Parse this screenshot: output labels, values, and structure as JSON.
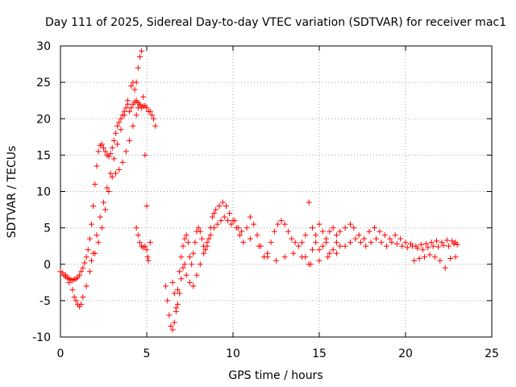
{
  "chart_data": {
    "type": "scatter",
    "title": "Day 111 of 2025, Sidereal Day-to-day VTEC variation (SDTVAR) for receiver mac1",
    "xlabel": "GPS time / hours",
    "ylabel": "SDTVAR / TECUs",
    "xlim": [
      0,
      25
    ],
    "ylim": [
      -10,
      30
    ],
    "xticks": [
      "0",
      "5",
      "10",
      "15",
      "20",
      "25"
    ],
    "yticks": [
      "-10",
      "-5",
      "0",
      "5",
      "10",
      "15",
      "20",
      "25",
      "30"
    ],
    "grid": true,
    "marker": "plus",
    "color": "#ff0000",
    "series": [
      {
        "name": "SDTVAR",
        "x": [
          0.0,
          0.1,
          0.2,
          0.3,
          0.4,
          0.5,
          0.6,
          0.7,
          0.8,
          0.9,
          1.0,
          1.1,
          1.2,
          1.3,
          1.4,
          1.5,
          1.6,
          1.7,
          1.8,
          1.9,
          2.0,
          2.1,
          2.2,
          2.3,
          2.4,
          2.5,
          2.6,
          2.7,
          2.8,
          2.9,
          3.0,
          3.1,
          3.2,
          3.3,
          3.4,
          3.5,
          3.6,
          3.7,
          3.8,
          3.9,
          4.0,
          4.1,
          4.2,
          4.3,
          4.4,
          4.5,
          4.6,
          4.7,
          4.8,
          4.9,
          5.0,
          5.1,
          5.2,
          5.3,
          5.4,
          5.5,
          0.3,
          0.5,
          0.7,
          0.8,
          0.9,
          1.0,
          1.1,
          1.2,
          1.3,
          1.5,
          1.7,
          1.9,
          2.1,
          2.3,
          2.5,
          2.7,
          2.9,
          3.1,
          3.3,
          3.5,
          3.7,
          3.9,
          4.1,
          4.2,
          4.3,
          4.4,
          4.5,
          4.6,
          4.7,
          4.8,
          4.9,
          5.0,
          5.2,
          1.8,
          2.0,
          2.2,
          2.4,
          2.6,
          2.8,
          3.0,
          3.2,
          3.4,
          3.6,
          3.8,
          4.0,
          4.2,
          4.4,
          4.5,
          4.6,
          4.4,
          4.5,
          4.6,
          4.7,
          4.8,
          4.9,
          5.0,
          5.05,
          5.1,
          6.1,
          6.2,
          6.3,
          6.4,
          6.5,
          6.6,
          6.7,
          6.8,
          6.9,
          7.0,
          7.1,
          7.2,
          7.3,
          7.4,
          7.5,
          7.6,
          7.7,
          7.8,
          7.9,
          8.0,
          8.1,
          8.2,
          8.3,
          8.4,
          8.5,
          8.6,
          8.7,
          8.8,
          8.9,
          9.0,
          9.2,
          9.4,
          9.6,
          9.8,
          10.0,
          10.2,
          10.4,
          10.6,
          10.8,
          11.0,
          11.2,
          11.4,
          11.6,
          11.8,
          12.0,
          12.2,
          12.4,
          12.6,
          12.8,
          13.0,
          13.2,
          13.4,
          13.6,
          13.8,
          14.0,
          14.2,
          14.4,
          14.6,
          14.8,
          15.0,
          15.2,
          15.4,
          15.6,
          15.8,
          16.0,
          6.5,
          6.6,
          6.7,
          6.8,
          6.9,
          7.0,
          7.1,
          7.2,
          7.3,
          7.5,
          7.7,
          7.9,
          8.1,
          8.3,
          8.5,
          8.7,
          8.9,
          9.1,
          9.3,
          9.5,
          9.7,
          9.9,
          10.1,
          10.3,
          10.5,
          11.0,
          11.5,
          12.0,
          12.5,
          13.0,
          13.5,
          14.0,
          14.5,
          15.0,
          15.5,
          16.0,
          16.2,
          16.5,
          16.8,
          17.0,
          17.3,
          17.6,
          17.9,
          18.2,
          18.5,
          18.8,
          19.1,
          19.4,
          19.7,
          20.0,
          20.3,
          20.6,
          20.9,
          21.2,
          21.5,
          21.8,
          22.1,
          22.4,
          22.7,
          22.9,
          16.5,
          16.8,
          17.1,
          17.4,
          17.7,
          18.0,
          18.3,
          18.6,
          18.9,
          19.2,
          19.5,
          19.8,
          20.1,
          20.4,
          20.7,
          21.0,
          21.3,
          21.6,
          21.9,
          22.2,
          22.5,
          22.8,
          23.0,
          20.5,
          20.8,
          21.1,
          21.4,
          21.7,
          22.0,
          22.3,
          22.6,
          22.9,
          14.2,
          14.4,
          14.6,
          14.8,
          15.0,
          15.2,
          15.4,
          15.6,
          15.8,
          16.0,
          16.2
        ],
        "y": [
          -1.0,
          -1.2,
          -1.5,
          -1.7,
          -1.9,
          -2.0,
          -2.1,
          -2.2,
          -2.1,
          -2.0,
          -1.8,
          -1.5,
          -1.0,
          -0.5,
          0.2,
          1.0,
          2.0,
          3.5,
          5.5,
          8.0,
          11.0,
          13.5,
          15.5,
          16.3,
          16.5,
          16.0,
          15.5,
          15.0,
          14.8,
          15.2,
          16.0,
          17.0,
          18.0,
          19.0,
          19.5,
          20.0,
          20.5,
          21.0,
          21.5,
          22.0,
          21.0,
          21.5,
          22.0,
          22.3,
          22.5,
          22.2,
          21.8,
          21.5,
          21.7,
          21.8,
          21.5,
          21.0,
          21.0,
          20.5,
          20.0,
          19.0,
          -1.5,
          -2.5,
          -3.5,
          -4.5,
          -5.0,
          -5.5,
          -5.8,
          -5.5,
          -4.5,
          -3.0,
          -1.0,
          1.5,
          4.0,
          6.5,
          8.5,
          10.5,
          12.5,
          14.5,
          16.5,
          18.5,
          20.5,
          22.5,
          24.5,
          25.0,
          24.0,
          25.0,
          27.0,
          28.5,
          29.3,
          23.0,
          15.0,
          8.0,
          3.0,
          0.5,
          1.5,
          3.0,
          5.0,
          7.5,
          10.0,
          12.0,
          12.5,
          13.0,
          14.0,
          15.5,
          17.0,
          19.0,
          20.5,
          21.5,
          22.0,
          5.0,
          4.0,
          3.0,
          2.5,
          2.3,
          2.5,
          2.0,
          1.0,
          0.5,
          -3.0,
          -5.0,
          -7.0,
          -8.5,
          -9.0,
          -8.0,
          -6.0,
          -3.5,
          -1.0,
          1.0,
          2.5,
          3.5,
          4.0,
          3.0,
          1.0,
          0.0,
          1.5,
          3.0,
          4.5,
          5.0,
          4.5,
          3.5,
          2.5,
          2.0,
          2.5,
          3.5,
          5.0,
          6.5,
          7.0,
          7.5,
          8.0,
          8.5,
          8.0,
          7.0,
          6.0,
          5.0,
          4.0,
          3.0,
          5.0,
          6.5,
          5.5,
          4.0,
          2.5,
          1.0,
          1.5,
          3.0,
          4.5,
          5.5,
          6.0,
          5.5,
          4.5,
          3.5,
          3.0,
          2.5,
          3.0,
          4.0,
          8.5,
          5.0,
          3.0,
          2.0,
          2.5,
          3.5,
          4.5,
          5.0,
          4.0,
          -2.5,
          -4.0,
          -6.5,
          -5.5,
          -4.0,
          -2.0,
          -0.5,
          0.0,
          -1.5,
          -2.5,
          -3.0,
          -1.5,
          0.0,
          1.5,
          3.0,
          4.0,
          5.0,
          5.5,
          6.0,
          6.5,
          6.0,
          5.5,
          6.0,
          5.0,
          4.5,
          3.5,
          2.5,
          1.0,
          0.5,
          1.0,
          1.5,
          1.0,
          0.0,
          0.5,
          1.0,
          1.5,
          4.5,
          5.0,
          5.5,
          5.0,
          4.0,
          3.5,
          4.5,
          5.0,
          4.5,
          4.0,
          3.5,
          4.0,
          3.5,
          3.0,
          2.8,
          2.5,
          2.7,
          2.8,
          3.0,
          3.2,
          3.0,
          3.3,
          3.2,
          3.0,
          2.5,
          3.0,
          3.5,
          3.0,
          2.5,
          3.0,
          3.5,
          3.0,
          2.5,
          3.0,
          2.8,
          2.5,
          2.3,
          2.5,
          2.2,
          2.0,
          2.3,
          2.5,
          2.4,
          2.6,
          2.5,
          2.8,
          2.7,
          0.5,
          0.8,
          1.0,
          1.3,
          1.0,
          0.5,
          -0.5,
          0.8,
          1.0,
          1.0,
          0.0,
          2.0,
          4.0,
          5.5,
          4.5,
          3.0,
          1.5,
          2.0,
          3.0,
          2.5
        ]
      }
    ]
  }
}
